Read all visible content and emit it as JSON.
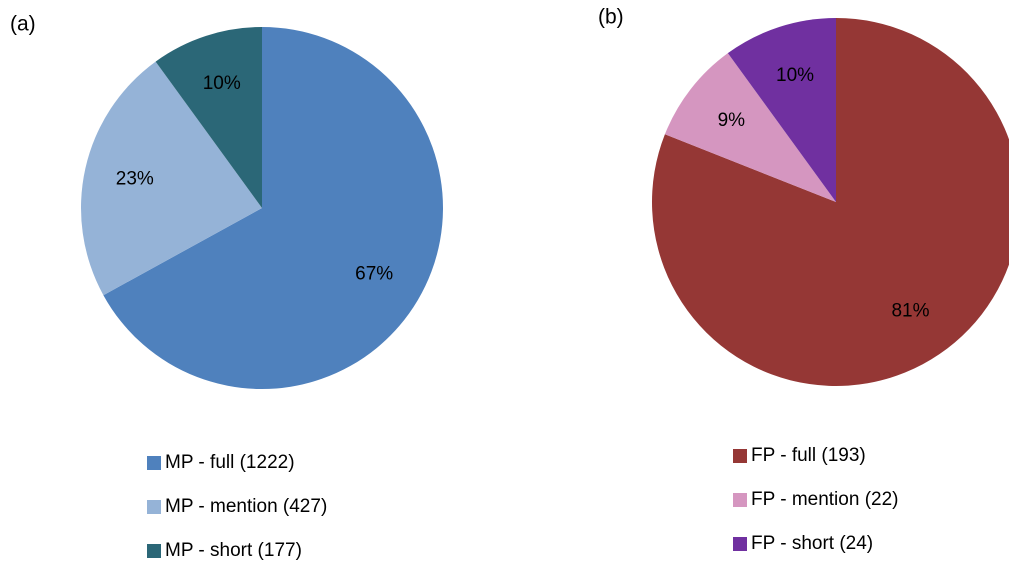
{
  "chart_data": [
    {
      "type": "pie",
      "title": "(a)",
      "categories": [
        "MP - full (1222)",
        "MP - mention (427)",
        "MP - short (177)"
      ],
      "values": [
        67,
        23,
        10
      ],
      "value_labels": [
        "67%",
        "23%",
        "10%"
      ],
      "colors": [
        "#4f81bd",
        "#95b3d7",
        "#2b6777"
      ]
    },
    {
      "type": "pie",
      "title": "(b)",
      "categories": [
        "FP - full (193)",
        "FP - mention (22)",
        "FP - short (24)"
      ],
      "values": [
        81,
        9,
        10
      ],
      "value_labels": [
        "81%",
        "9%",
        "10%"
      ],
      "colors": [
        "#953735",
        "#d596c0",
        "#7030a0"
      ]
    }
  ]
}
